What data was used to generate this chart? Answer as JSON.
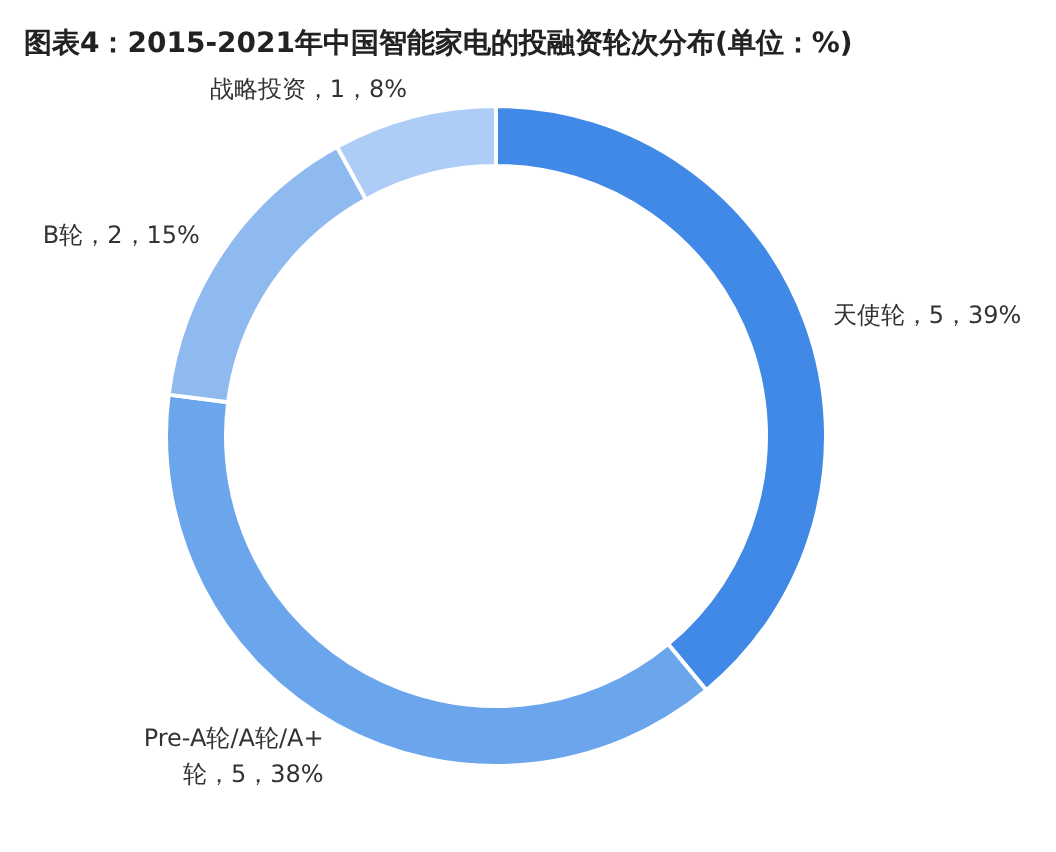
{
  "chart_data": {
    "type": "donut",
    "title": "图表4：2015-2021年中国智能家电的投融资轮次分布(单位：%)",
    "categories": [
      "天使轮",
      "Pre-A轮/A轮/A+轮",
      "B轮",
      "战略投资"
    ],
    "values": [
      39,
      38,
      15,
      8
    ],
    "colors": [
      "#4189e6",
      "#6ba5ec",
      "#8fbaf0",
      "#adcdf6"
    ],
    "value_labels": [
      "5，39%",
      "5，38%",
      "2，15%",
      "1，8%"
    ]
  }
}
